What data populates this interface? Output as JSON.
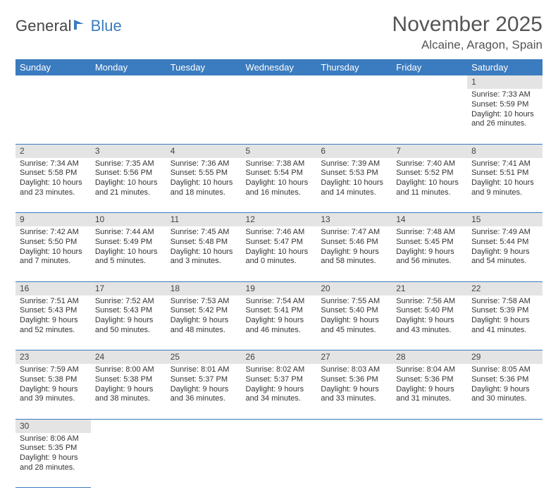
{
  "logo": {
    "part1": "General",
    "part2": "Blue"
  },
  "title": "November 2025",
  "subtitle": "Alcaine, Aragon, Spain",
  "colors": {
    "accent": "#3b7bbf",
    "headerText": "#ffffff",
    "dayBar": "#e4e4e4",
    "text": "#333333"
  },
  "weekdays": [
    "Sunday",
    "Monday",
    "Tuesday",
    "Wednesday",
    "Thursday",
    "Friday",
    "Saturday"
  ],
  "weeks": [
    [
      null,
      null,
      null,
      null,
      null,
      null,
      {
        "n": "1",
        "sr": "Sunrise: 7:33 AM",
        "ss": "Sunset: 5:59 PM",
        "dl": "Daylight: 10 hours and 26 minutes."
      }
    ],
    [
      {
        "n": "2",
        "sr": "Sunrise: 7:34 AM",
        "ss": "Sunset: 5:58 PM",
        "dl": "Daylight: 10 hours and 23 minutes."
      },
      {
        "n": "3",
        "sr": "Sunrise: 7:35 AM",
        "ss": "Sunset: 5:56 PM",
        "dl": "Daylight: 10 hours and 21 minutes."
      },
      {
        "n": "4",
        "sr": "Sunrise: 7:36 AM",
        "ss": "Sunset: 5:55 PM",
        "dl": "Daylight: 10 hours and 18 minutes."
      },
      {
        "n": "5",
        "sr": "Sunrise: 7:38 AM",
        "ss": "Sunset: 5:54 PM",
        "dl": "Daylight: 10 hours and 16 minutes."
      },
      {
        "n": "6",
        "sr": "Sunrise: 7:39 AM",
        "ss": "Sunset: 5:53 PM",
        "dl": "Daylight: 10 hours and 14 minutes."
      },
      {
        "n": "7",
        "sr": "Sunrise: 7:40 AM",
        "ss": "Sunset: 5:52 PM",
        "dl": "Daylight: 10 hours and 11 minutes."
      },
      {
        "n": "8",
        "sr": "Sunrise: 7:41 AM",
        "ss": "Sunset: 5:51 PM",
        "dl": "Daylight: 10 hours and 9 minutes."
      }
    ],
    [
      {
        "n": "9",
        "sr": "Sunrise: 7:42 AM",
        "ss": "Sunset: 5:50 PM",
        "dl": "Daylight: 10 hours and 7 minutes."
      },
      {
        "n": "10",
        "sr": "Sunrise: 7:44 AM",
        "ss": "Sunset: 5:49 PM",
        "dl": "Daylight: 10 hours and 5 minutes."
      },
      {
        "n": "11",
        "sr": "Sunrise: 7:45 AM",
        "ss": "Sunset: 5:48 PM",
        "dl": "Daylight: 10 hours and 3 minutes."
      },
      {
        "n": "12",
        "sr": "Sunrise: 7:46 AM",
        "ss": "Sunset: 5:47 PM",
        "dl": "Daylight: 10 hours and 0 minutes."
      },
      {
        "n": "13",
        "sr": "Sunrise: 7:47 AM",
        "ss": "Sunset: 5:46 PM",
        "dl": "Daylight: 9 hours and 58 minutes."
      },
      {
        "n": "14",
        "sr": "Sunrise: 7:48 AM",
        "ss": "Sunset: 5:45 PM",
        "dl": "Daylight: 9 hours and 56 minutes."
      },
      {
        "n": "15",
        "sr": "Sunrise: 7:49 AM",
        "ss": "Sunset: 5:44 PM",
        "dl": "Daylight: 9 hours and 54 minutes."
      }
    ],
    [
      {
        "n": "16",
        "sr": "Sunrise: 7:51 AM",
        "ss": "Sunset: 5:43 PM",
        "dl": "Daylight: 9 hours and 52 minutes."
      },
      {
        "n": "17",
        "sr": "Sunrise: 7:52 AM",
        "ss": "Sunset: 5:43 PM",
        "dl": "Daylight: 9 hours and 50 minutes."
      },
      {
        "n": "18",
        "sr": "Sunrise: 7:53 AM",
        "ss": "Sunset: 5:42 PM",
        "dl": "Daylight: 9 hours and 48 minutes."
      },
      {
        "n": "19",
        "sr": "Sunrise: 7:54 AM",
        "ss": "Sunset: 5:41 PM",
        "dl": "Daylight: 9 hours and 46 minutes."
      },
      {
        "n": "20",
        "sr": "Sunrise: 7:55 AM",
        "ss": "Sunset: 5:40 PM",
        "dl": "Daylight: 9 hours and 45 minutes."
      },
      {
        "n": "21",
        "sr": "Sunrise: 7:56 AM",
        "ss": "Sunset: 5:40 PM",
        "dl": "Daylight: 9 hours and 43 minutes."
      },
      {
        "n": "22",
        "sr": "Sunrise: 7:58 AM",
        "ss": "Sunset: 5:39 PM",
        "dl": "Daylight: 9 hours and 41 minutes."
      }
    ],
    [
      {
        "n": "23",
        "sr": "Sunrise: 7:59 AM",
        "ss": "Sunset: 5:38 PM",
        "dl": "Daylight: 9 hours and 39 minutes."
      },
      {
        "n": "24",
        "sr": "Sunrise: 8:00 AM",
        "ss": "Sunset: 5:38 PM",
        "dl": "Daylight: 9 hours and 38 minutes."
      },
      {
        "n": "25",
        "sr": "Sunrise: 8:01 AM",
        "ss": "Sunset: 5:37 PM",
        "dl": "Daylight: 9 hours and 36 minutes."
      },
      {
        "n": "26",
        "sr": "Sunrise: 8:02 AM",
        "ss": "Sunset: 5:37 PM",
        "dl": "Daylight: 9 hours and 34 minutes."
      },
      {
        "n": "27",
        "sr": "Sunrise: 8:03 AM",
        "ss": "Sunset: 5:36 PM",
        "dl": "Daylight: 9 hours and 33 minutes."
      },
      {
        "n": "28",
        "sr": "Sunrise: 8:04 AM",
        "ss": "Sunset: 5:36 PM",
        "dl": "Daylight: 9 hours and 31 minutes."
      },
      {
        "n": "29",
        "sr": "Sunrise: 8:05 AM",
        "ss": "Sunset: 5:36 PM",
        "dl": "Daylight: 9 hours and 30 minutes."
      }
    ],
    [
      {
        "n": "30",
        "sr": "Sunrise: 8:06 AM",
        "ss": "Sunset: 5:35 PM",
        "dl": "Daylight: 9 hours and 28 minutes."
      },
      null,
      null,
      null,
      null,
      null,
      null
    ]
  ]
}
